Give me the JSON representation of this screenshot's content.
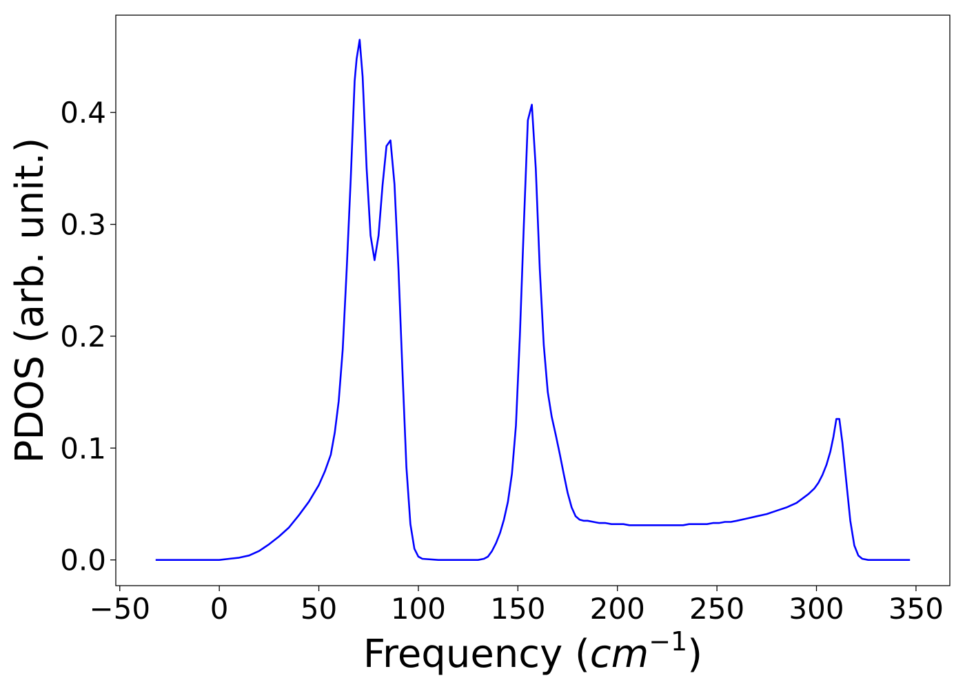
{
  "chart_data": {
    "type": "line",
    "title": "",
    "xlabel": {
      "prefix": "Frequency (",
      "unit": "cm",
      "exponent": "−1",
      "suffix": ")"
    },
    "ylabel": "PDOS (arb. unit.)",
    "xlim": [
      -52,
      367
    ],
    "ylim": [
      -0.023,
      0.487
    ],
    "xticks": [
      -50,
      0,
      50,
      100,
      150,
      200,
      250,
      300,
      350
    ],
    "xtick_labels": [
      "−50",
      "0",
      "50",
      "100",
      "150",
      "200",
      "250",
      "300",
      "350"
    ],
    "yticks": [
      0.0,
      0.1,
      0.2,
      0.3,
      0.4
    ],
    "ytick_labels": [
      "0.0",
      "0.1",
      "0.2",
      "0.3",
      "0.4"
    ],
    "grid": false,
    "series": [
      {
        "color": "#0000ff",
        "x": [
          -32,
          -20,
          -10,
          0,
          5,
          10,
          15,
          20,
          25,
          30,
          35,
          40,
          45,
          50,
          53,
          56,
          58,
          60,
          62,
          64,
          66,
          68,
          69,
          70.5,
          72,
          74,
          76,
          78,
          80,
          82,
          84,
          86,
          88,
          90,
          92,
          94,
          96,
          98,
          100,
          102,
          110,
          120,
          130,
          133,
          135,
          137,
          139,
          141,
          143,
          145,
          147,
          149,
          151,
          153,
          155,
          157,
          159,
          161,
          163,
          165,
          167,
          169,
          171,
          173,
          175,
          177,
          179,
          181,
          183,
          185,
          188,
          191,
          194,
          197,
          200,
          203,
          206,
          209,
          212,
          215,
          218,
          221,
          224,
          227,
          230,
          233,
          236,
          239,
          242,
          245,
          248,
          251,
          254,
          257,
          260,
          265,
          270,
          275,
          280,
          285,
          290,
          293,
          296,
          299,
          301,
          303,
          305,
          307,
          308.5,
          310,
          311.5,
          313,
          315,
          317,
          319,
          321,
          323,
          326,
          330,
          340,
          347
        ],
        "values": [
          0,
          0,
          0,
          0,
          0.001,
          0.002,
          0.004,
          0.008,
          0.014,
          0.021,
          0.029,
          0.04,
          0.052,
          0.067,
          0.079,
          0.094,
          0.114,
          0.142,
          0.188,
          0.26,
          0.34,
          0.428,
          0.448,
          0.465,
          0.432,
          0.35,
          0.29,
          0.268,
          0.29,
          0.335,
          0.37,
          0.375,
          0.336,
          0.26,
          0.17,
          0.083,
          0.032,
          0.01,
          0.003,
          0.001,
          0,
          0,
          0,
          0.001,
          0.003,
          0.008,
          0.015,
          0.024,
          0.036,
          0.052,
          0.077,
          0.12,
          0.2,
          0.3,
          0.393,
          0.407,
          0.35,
          0.26,
          0.192,
          0.15,
          0.128,
          0.112,
          0.095,
          0.077,
          0.06,
          0.047,
          0.039,
          0.036,
          0.035,
          0.035,
          0.034,
          0.033,
          0.033,
          0.032,
          0.032,
          0.032,
          0.031,
          0.031,
          0.031,
          0.031,
          0.031,
          0.031,
          0.031,
          0.031,
          0.031,
          0.031,
          0.032,
          0.032,
          0.032,
          0.032,
          0.033,
          0.033,
          0.034,
          0.034,
          0.035,
          0.037,
          0.039,
          0.041,
          0.044,
          0.047,
          0.051,
          0.055,
          0.059,
          0.064,
          0.069,
          0.076,
          0.085,
          0.097,
          0.11,
          0.126,
          0.126,
          0.105,
          0.07,
          0.035,
          0.013,
          0.004,
          0.001,
          0,
          0,
          0,
          0
        ]
      }
    ]
  }
}
